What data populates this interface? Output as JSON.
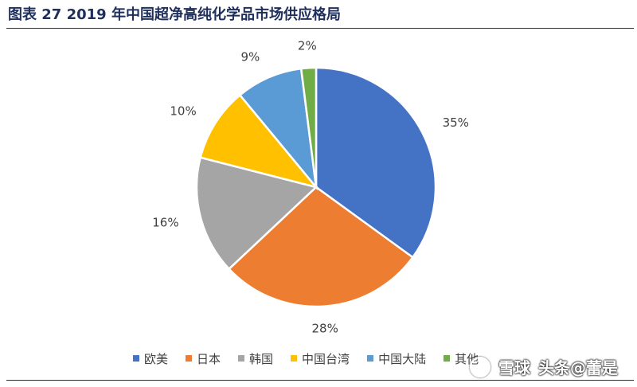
{
  "title": "图表 27 2019 年中国超净高纯化学品市场供应格局",
  "chart_data": {
    "type": "pie",
    "title": "",
    "slices": [
      {
        "label": "欧美",
        "value": 35,
        "value_label": "35%",
        "color": "#4472C4"
      },
      {
        "label": "日本",
        "value": 28,
        "value_label": "28%",
        "color": "#ED7D31"
      },
      {
        "label": "韩国",
        "value": 16,
        "value_label": "16%",
        "color": "#A5A5A5"
      },
      {
        "label": "中国台湾",
        "value": 10,
        "value_label": "10%",
        "color": "#FFC000"
      },
      {
        "label": "中国大陆",
        "value": 9,
        "value_label": "9%",
        "color": "#5B9BD5"
      },
      {
        "label": "其他",
        "value": 2,
        "value_label": "2%",
        "color": "#70AD47"
      }
    ],
    "start_angle_deg": 0,
    "direction": "clockwise",
    "legend_position": "bottom"
  },
  "watermark": {
    "logo_text": "雪球",
    "text": "头条@蕾是"
  }
}
